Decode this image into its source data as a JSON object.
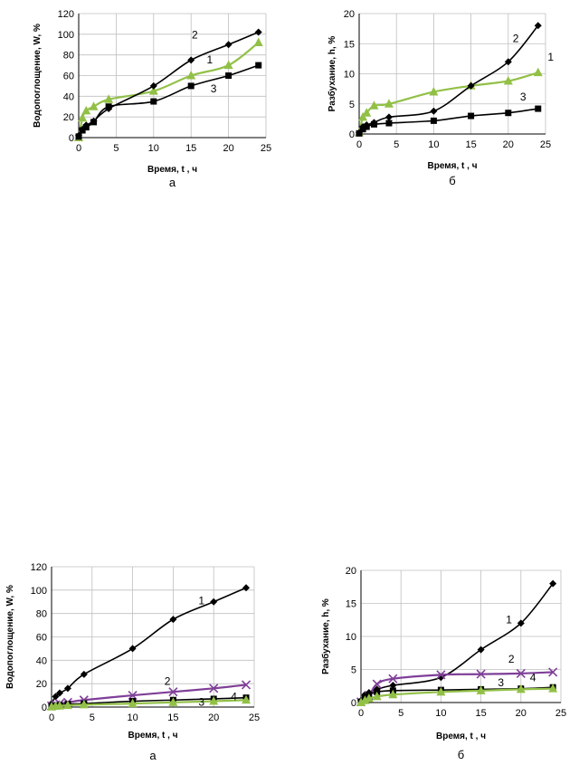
{
  "chart_data": [
    {
      "type": "line",
      "caption": "а",
      "xlabel": "Время, t , ч",
      "ylabel": "Водопоглощение, W, %",
      "xlim": [
        0,
        25
      ],
      "ylim": [
        0,
        120
      ],
      "xticks": [
        0,
        5,
        10,
        15,
        20,
        25
      ],
      "yticks": [
        0,
        20,
        40,
        60,
        80,
        100,
        120
      ],
      "grid": true,
      "series": [
        {
          "name": "1",
          "color": "#92c047",
          "marker": "triangle",
          "x": [
            0,
            0.5,
            1,
            2,
            4,
            10,
            15,
            20,
            24
          ],
          "y": [
            0,
            19,
            26,
            30,
            37,
            45,
            60,
            70,
            92
          ]
        },
        {
          "name": "2",
          "color": "#000000",
          "marker": "diamond",
          "x": [
            0,
            0.5,
            1,
            2,
            4,
            10,
            15,
            20,
            24
          ],
          "y": [
            2,
            8,
            12,
            16,
            28,
            50,
            75,
            90,
            102
          ]
        },
        {
          "name": "3",
          "color": "#000000",
          "marker": "square",
          "x": [
            0,
            0.5,
            1,
            2,
            4,
            10,
            15,
            20,
            24
          ],
          "y": [
            1,
            7,
            10,
            15,
            30,
            35,
            50,
            60,
            70
          ]
        }
      ],
      "curve_labels": [
        {
          "text": "2",
          "x": 15.5,
          "y": 96
        },
        {
          "text": "1",
          "x": 17.5,
          "y": 72
        },
        {
          "text": "3",
          "x": 18.0,
          "y": 44
        }
      ]
    },
    {
      "type": "line",
      "caption": "б",
      "xlabel": "Время, t , ч",
      "ylabel": "Разбухание, h, %",
      "xlim": [
        0,
        25
      ],
      "ylim": [
        0,
        20
      ],
      "xticks": [
        0,
        5,
        10,
        15,
        20,
        25
      ],
      "yticks": [
        0,
        5,
        10,
        15,
        20
      ],
      "grid": true,
      "series": [
        {
          "name": "1",
          "color": "#92c047",
          "marker": "triangle",
          "x": [
            0,
            0.5,
            1,
            2,
            4,
            10,
            15,
            20,
            24
          ],
          "y": [
            0.2,
            2.8,
            3.5,
            4.7,
            5.0,
            7.0,
            8.0,
            8.8,
            10.2
          ]
        },
        {
          "name": "2",
          "color": "#000000",
          "marker": "diamond",
          "x": [
            0,
            0.5,
            1,
            2,
            4,
            10,
            15,
            20,
            24
          ],
          "y": [
            0.2,
            1.2,
            1.5,
            1.9,
            2.8,
            3.8,
            8.0,
            12.0,
            18.0
          ]
        },
        {
          "name": "3",
          "color": "#000000",
          "marker": "square",
          "x": [
            0,
            0.5,
            1,
            2,
            4,
            10,
            15,
            20,
            24
          ],
          "y": [
            0.1,
            0.8,
            1.2,
            1.6,
            1.8,
            2.2,
            3.0,
            3.5,
            4.2
          ]
        }
      ],
      "curve_labels": [
        {
          "text": "2",
          "x": 21,
          "y": 15.3
        },
        {
          "text": "1",
          "x": 25.7,
          "y": 12.2
        },
        {
          "text": "3",
          "x": 22.0,
          "y": 5.6
        }
      ]
    },
    {
      "type": "line",
      "caption": "а",
      "xlabel": "Время, t , ч",
      "ylabel": "Водопоглощение, W, %",
      "xlim": [
        0,
        25
      ],
      "ylim": [
        0,
        120
      ],
      "xticks": [
        0,
        5,
        10,
        15,
        20,
        25
      ],
      "yticks": [
        0,
        20,
        40,
        60,
        80,
        100,
        120
      ],
      "grid": true,
      "series": [
        {
          "name": "1",
          "color": "#000000",
          "marker": "diamond",
          "x": [
            0,
            0.5,
            1,
            2,
            4,
            10,
            15,
            20,
            24
          ],
          "y": [
            3,
            9,
            12,
            16,
            28,
            50,
            75,
            90,
            102
          ]
        },
        {
          "name": "2",
          "color": "#7f3f98",
          "marker": "x",
          "x": [
            0,
            0.5,
            1,
            2,
            4,
            10,
            15,
            20,
            24
          ],
          "y": [
            1,
            2,
            3,
            4,
            6,
            10,
            13,
            16,
            19
          ]
        },
        {
          "name": "3",
          "color": "#000000",
          "marker": "square",
          "x": [
            0,
            0.5,
            1,
            2,
            4,
            10,
            15,
            20,
            24
          ],
          "y": [
            0.5,
            1,
            1.5,
            2.5,
            3,
            5,
            6,
            7,
            8
          ]
        },
        {
          "name": "4",
          "color": "#92c047",
          "marker": "triangle",
          "x": [
            0,
            0.5,
            1,
            2,
            4,
            10,
            15,
            20,
            24
          ],
          "y": [
            0.2,
            0.8,
            1,
            1.5,
            2,
            3,
            4,
            5,
            6
          ]
        }
      ],
      "curve_labels": [
        {
          "text": "1",
          "x": 18.5,
          "y": 88
        },
        {
          "text": "2",
          "x": 14.3,
          "y": 19
        },
        {
          "text": "3",
          "x": 18.5,
          "y": 1
        },
        {
          "text": "4",
          "x": 22.5,
          "y": 6
        }
      ]
    },
    {
      "type": "line",
      "caption": "б",
      "xlabel": "Время, t , ч",
      "ylabel": "Разбухание, h, %",
      "xlim": [
        0,
        25
      ],
      "ylim": [
        0,
        20
      ],
      "xticks": [
        0,
        5,
        10,
        15,
        20,
        25
      ],
      "yticks": [
        0,
        5,
        10,
        15,
        20
      ],
      "grid": true,
      "series": [
        {
          "name": "1",
          "color": "#000000",
          "marker": "diamond",
          "x": [
            0,
            0.5,
            1,
            2,
            4,
            10,
            15,
            20,
            24
          ],
          "y": [
            0.3,
            1.2,
            1.5,
            2.0,
            2.6,
            3.8,
            8.0,
            12.0,
            18.0
          ]
        },
        {
          "name": "2",
          "color": "#7f3f98",
          "marker": "x",
          "x": [
            0,
            0.5,
            1,
            2,
            4,
            10,
            15,
            20,
            24
          ],
          "y": [
            0.1,
            0.6,
            1.0,
            2.8,
            3.6,
            4.2,
            4.3,
            4.4,
            4.6
          ]
        },
        {
          "name": "3",
          "color": "#000000",
          "marker": "square",
          "x": [
            0,
            0.5,
            1,
            2,
            4,
            10,
            15,
            20,
            24
          ],
          "y": [
            0.1,
            0.8,
            1.2,
            1.6,
            1.8,
            1.9,
            2.0,
            2.1,
            2.3
          ]
        },
        {
          "name": "4",
          "color": "#92c047",
          "marker": "triangle",
          "x": [
            0,
            0.5,
            1,
            2,
            4,
            10,
            15,
            20,
            24
          ],
          "y": [
            0,
            0.3,
            0.6,
            0.9,
            1.2,
            1.6,
            1.8,
            2.0,
            2.1
          ]
        }
      ],
      "curve_labels": [
        {
          "text": "1",
          "x": 18.5,
          "y": 12.0
        },
        {
          "text": "2",
          "x": 18.8,
          "y": 6.0
        },
        {
          "text": "3",
          "x": 17.5,
          "y": 2.5
        },
        {
          "text": "4",
          "x": 21.5,
          "y": 3.2
        }
      ]
    }
  ]
}
